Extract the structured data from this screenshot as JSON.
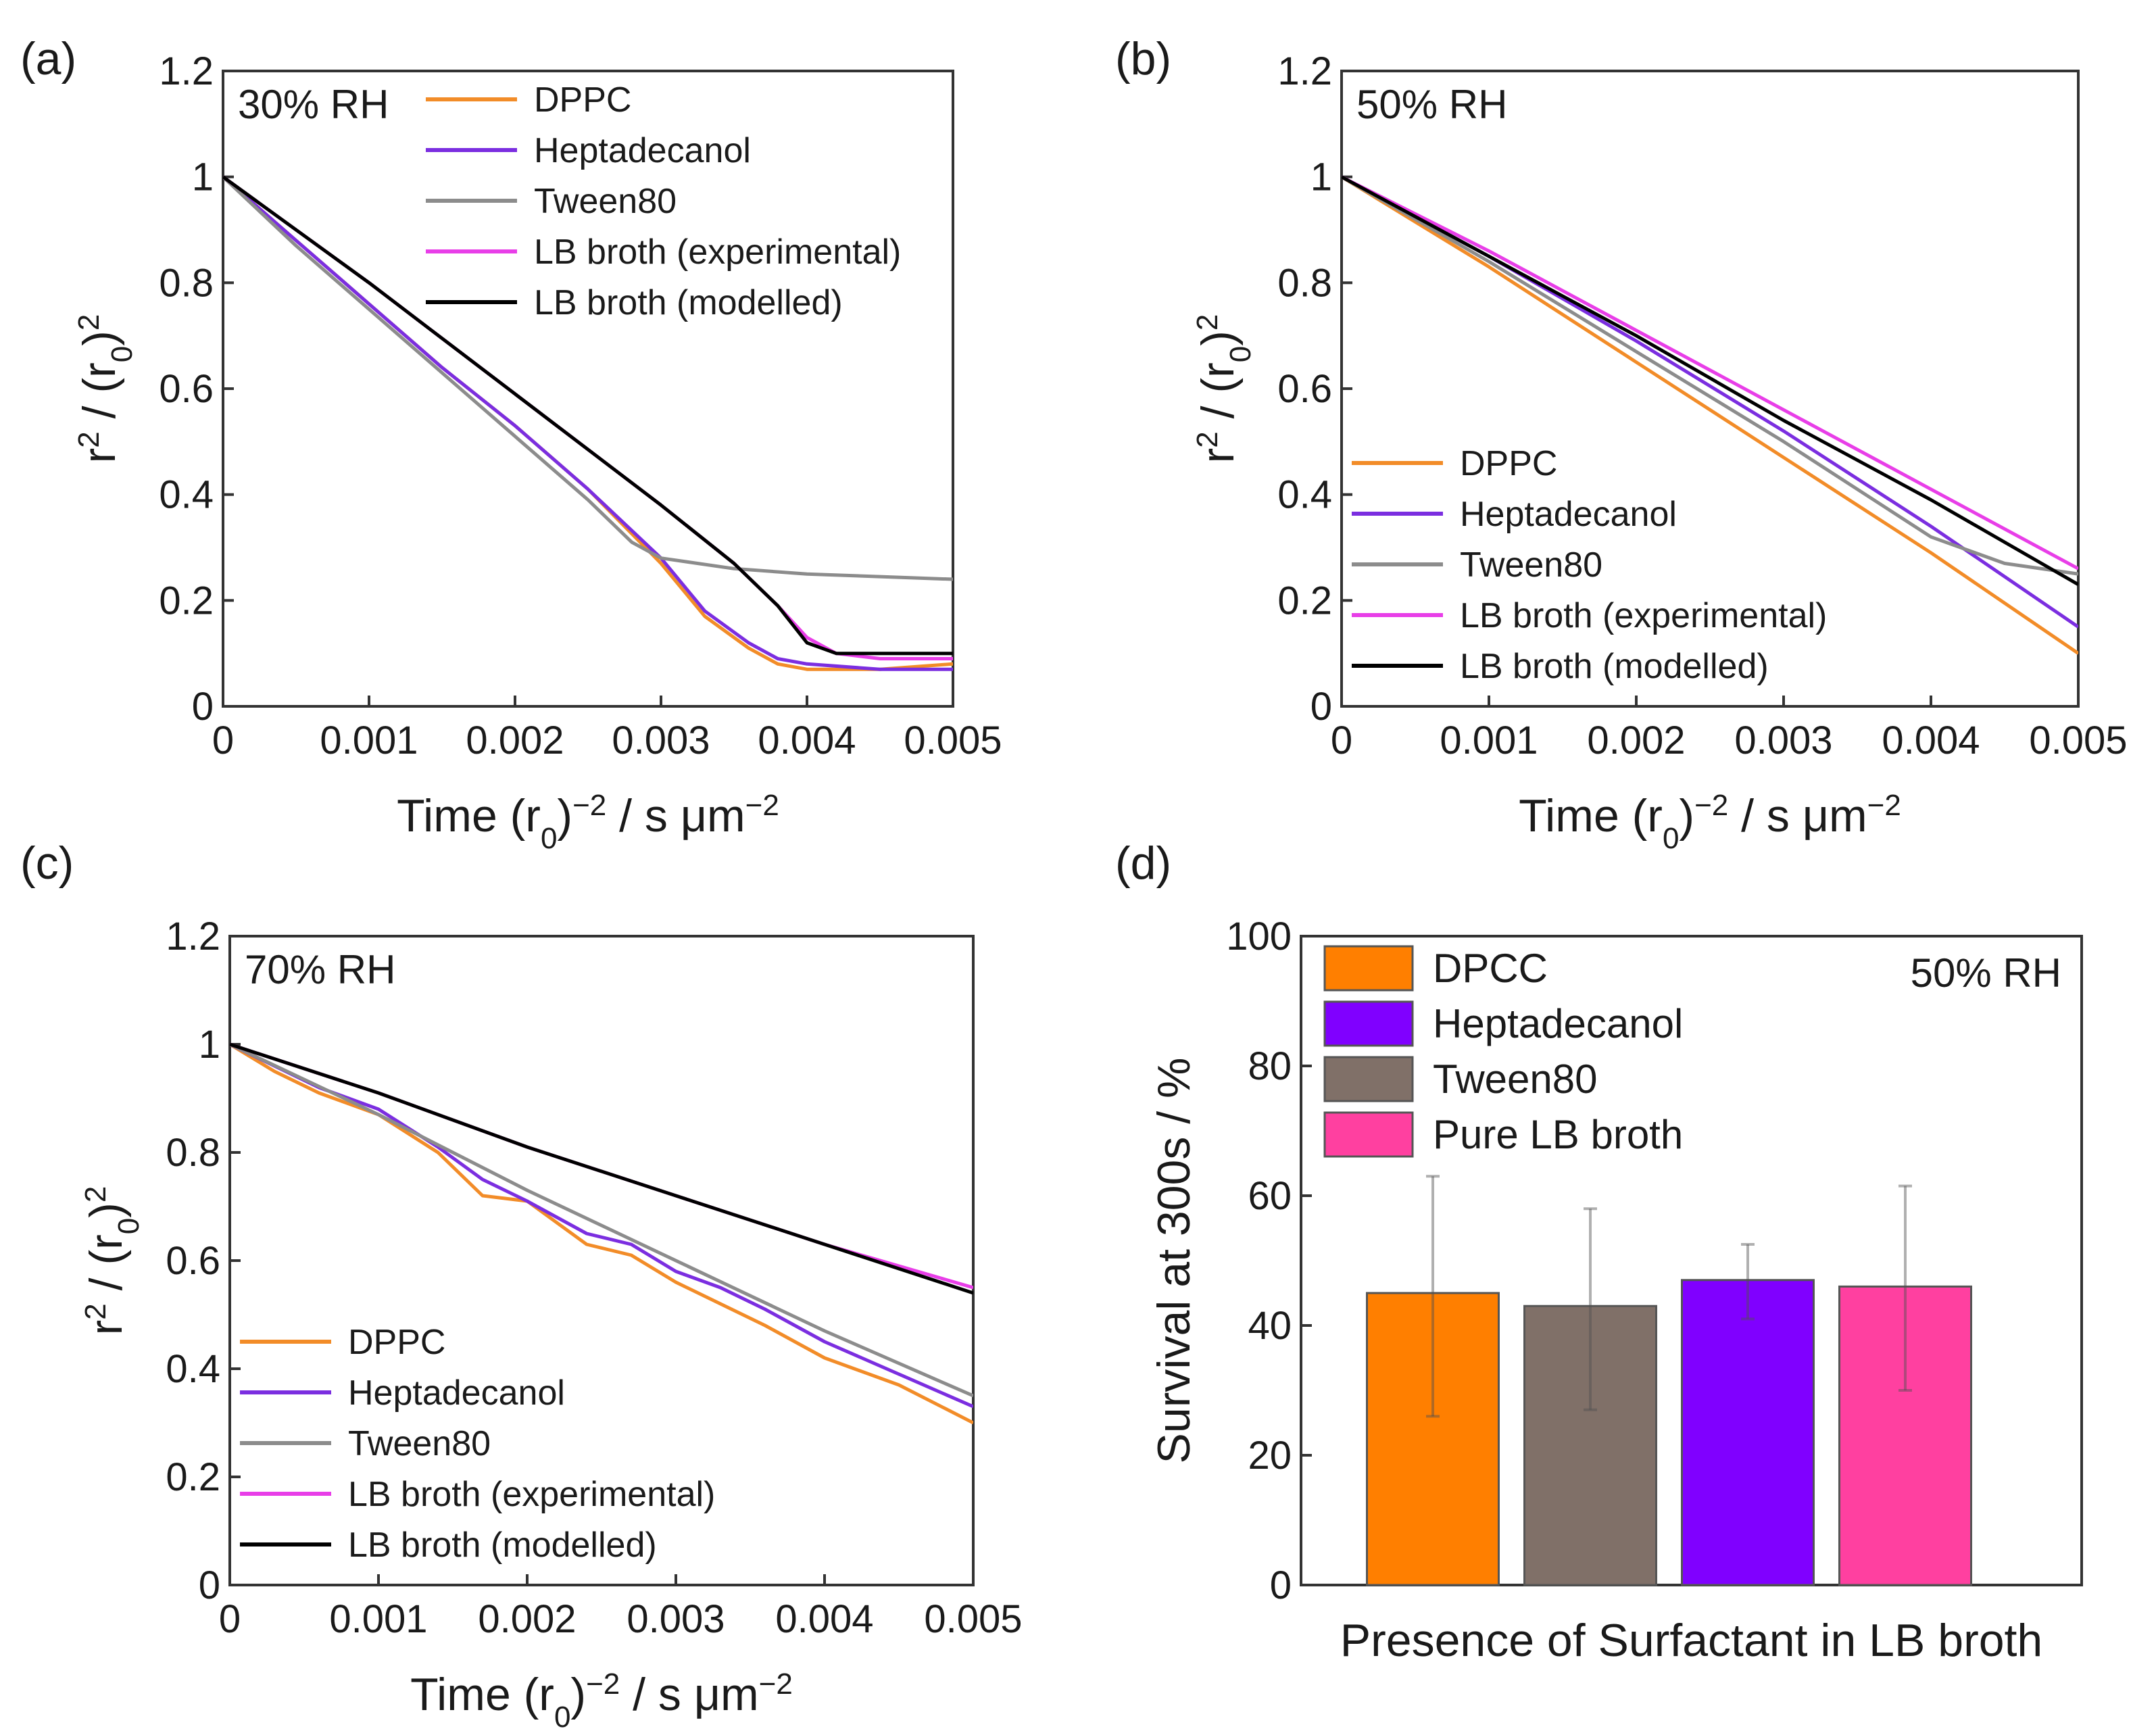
{
  "chart_data": [
    {
      "type": "line",
      "panel_label": "(a)",
      "annotation": "30% RH",
      "xlabel": "Time (r0)−2 / s μm−2",
      "ylabel": "r2 / (r0)2",
      "xlim": [
        0,
        0.005
      ],
      "ylim": [
        0,
        1.2
      ],
      "xticks": [
        "0",
        "0.001",
        "0.002",
        "0.003",
        "0.004",
        "0.005"
      ],
      "yticks": [
        "0",
        "0.2",
        "0.4",
        "0.6",
        "0.8",
        "1",
        "1.2"
      ],
      "legend_position": "top-right",
      "series": [
        {
          "name": "DPPC",
          "color": "#f28c28",
          "x": [
            0,
            0.0005,
            0.001,
            0.0015,
            0.002,
            0.0025,
            0.003,
            0.0033,
            0.0036,
            0.0038,
            0.004,
            0.0045,
            0.005
          ],
          "y": [
            1.0,
            0.88,
            0.76,
            0.64,
            0.53,
            0.41,
            0.27,
            0.17,
            0.11,
            0.08,
            0.07,
            0.07,
            0.08
          ]
        },
        {
          "name": "Heptadecanol",
          "color": "#7b2ee0",
          "x": [
            0,
            0.0005,
            0.001,
            0.0015,
            0.002,
            0.0025,
            0.003,
            0.0033,
            0.0036,
            0.0038,
            0.004,
            0.0045,
            0.005
          ],
          "y": [
            1.0,
            0.88,
            0.76,
            0.64,
            0.53,
            0.41,
            0.28,
            0.18,
            0.12,
            0.09,
            0.08,
            0.07,
            0.07
          ]
        },
        {
          "name": "Tween80",
          "color": "#8c8c8c",
          "x": [
            0,
            0.0005,
            0.001,
            0.0015,
            0.002,
            0.0025,
            0.0028,
            0.003,
            0.0035,
            0.004,
            0.0045,
            0.005
          ],
          "y": [
            1.0,
            0.87,
            0.75,
            0.63,
            0.51,
            0.39,
            0.31,
            0.28,
            0.26,
            0.25,
            0.245,
            0.24
          ]
        },
        {
          "name": "LB broth (experimental)",
          "color": "#e83ee8",
          "x": [
            0,
            0.001,
            0.002,
            0.003,
            0.0035,
            0.0038,
            0.004,
            0.0042,
            0.0045,
            0.005
          ],
          "y": [
            1.0,
            0.8,
            0.59,
            0.38,
            0.27,
            0.19,
            0.13,
            0.1,
            0.09,
            0.09
          ]
        },
        {
          "name": "LB broth (modelled)",
          "color": "#000000",
          "x": [
            0,
            0.001,
            0.002,
            0.003,
            0.0035,
            0.0038,
            0.004,
            0.0042,
            0.0045,
            0.005
          ],
          "y": [
            1.0,
            0.8,
            0.59,
            0.38,
            0.27,
            0.19,
            0.12,
            0.1,
            0.1,
            0.1
          ]
        }
      ]
    },
    {
      "type": "line",
      "panel_label": "(b)",
      "annotation": "50% RH",
      "xlabel": "Time (r0)−2 / s μm−2",
      "ylabel": "r2 / (r0)2",
      "xlim": [
        0,
        0.005
      ],
      "ylim": [
        0,
        1.2
      ],
      "xticks": [
        "0",
        "0.001",
        "0.002",
        "0.003",
        "0.004",
        "0.005"
      ],
      "yticks": [
        "0",
        "0.2",
        "0.4",
        "0.6",
        "0.8",
        "1",
        "1.2"
      ],
      "legend_position": "bottom-left",
      "series": [
        {
          "name": "DPPC",
          "color": "#f28c28",
          "x": [
            0,
            0.001,
            0.002,
            0.003,
            0.004,
            0.005
          ],
          "y": [
            1.0,
            0.83,
            0.65,
            0.47,
            0.29,
            0.1
          ]
        },
        {
          "name": "Heptadecanol",
          "color": "#7b2ee0",
          "x": [
            0,
            0.001,
            0.002,
            0.003,
            0.004,
            0.005
          ],
          "y": [
            1.0,
            0.85,
            0.69,
            0.52,
            0.34,
            0.15
          ]
        },
        {
          "name": "Tween80",
          "color": "#8c8c8c",
          "x": [
            0,
            0.001,
            0.002,
            0.003,
            0.004,
            0.0045,
            0.005
          ],
          "y": [
            1.0,
            0.84,
            0.67,
            0.5,
            0.32,
            0.27,
            0.25
          ]
        },
        {
          "name": "LB broth (experimental)",
          "color": "#e83ee8",
          "x": [
            0,
            0.001,
            0.002,
            0.003,
            0.004,
            0.005
          ],
          "y": [
            1.0,
            0.86,
            0.71,
            0.56,
            0.41,
            0.26
          ]
        },
        {
          "name": "LB broth (modelled)",
          "color": "#000000",
          "x": [
            0,
            0.001,
            0.002,
            0.003,
            0.004,
            0.005
          ],
          "y": [
            1.0,
            0.85,
            0.7,
            0.54,
            0.39,
            0.23
          ]
        }
      ]
    },
    {
      "type": "line",
      "panel_label": "(c)",
      "annotation": "70% RH",
      "xlabel": "Time (r0)−2 / s μm−2",
      "ylabel": "r2 / (r0)2",
      "xlim": [
        0,
        0.005
      ],
      "ylim": [
        0,
        1.2
      ],
      "xticks": [
        "0",
        "0.001",
        "0.002",
        "0.003",
        "0.004",
        "0.005"
      ],
      "yticks": [
        "0",
        "0.2",
        "0.4",
        "0.6",
        "0.8",
        "1",
        "1.2"
      ],
      "legend_position": "bottom-left",
      "series": [
        {
          "name": "DPPC",
          "color": "#f28c28",
          "x": [
            0,
            0.0003,
            0.0006,
            0.001,
            0.0014,
            0.0017,
            0.002,
            0.0024,
            0.0027,
            0.003,
            0.0033,
            0.0036,
            0.004,
            0.0045,
            0.005
          ],
          "y": [
            1.0,
            0.95,
            0.91,
            0.87,
            0.8,
            0.72,
            0.71,
            0.63,
            0.61,
            0.56,
            0.52,
            0.48,
            0.42,
            0.37,
            0.3
          ]
        },
        {
          "name": "Heptadecanol",
          "color": "#7b2ee0",
          "x": [
            0,
            0.0003,
            0.0006,
            0.001,
            0.0014,
            0.0017,
            0.002,
            0.0024,
            0.0027,
            0.003,
            0.0033,
            0.0036,
            0.004,
            0.0045,
            0.005
          ],
          "y": [
            1.0,
            0.96,
            0.92,
            0.88,
            0.81,
            0.75,
            0.71,
            0.65,
            0.63,
            0.58,
            0.55,
            0.51,
            0.45,
            0.39,
            0.33
          ]
        },
        {
          "name": "Tween80",
          "color": "#8c8c8c",
          "x": [
            0,
            0.001,
            0.002,
            0.003,
            0.004,
            0.005
          ],
          "y": [
            1.0,
            0.87,
            0.73,
            0.6,
            0.47,
            0.35
          ]
        },
        {
          "name": "LB broth (experimental)",
          "color": "#e83ee8",
          "x": [
            0,
            0.001,
            0.002,
            0.003,
            0.004,
            0.005
          ],
          "y": [
            1.0,
            0.91,
            0.81,
            0.72,
            0.63,
            0.55
          ]
        },
        {
          "name": "LB broth (modelled)",
          "color": "#000000",
          "x": [
            0,
            0.001,
            0.002,
            0.003,
            0.004,
            0.005
          ],
          "y": [
            1.0,
            0.91,
            0.81,
            0.72,
            0.63,
            0.54
          ]
        }
      ]
    },
    {
      "type": "bar",
      "panel_label": "(d)",
      "annotation": "50% RH",
      "xlabel": "Presence of Surfactant in LB broth",
      "ylabel": "Survival at 300s / %",
      "ylim": [
        0,
        100
      ],
      "yticks": [
        "0",
        "20",
        "40",
        "60",
        "80",
        "100"
      ],
      "legend_position": "top-left",
      "legend": [
        {
          "name": "DPCC",
          "color": "#ff7f00"
        },
        {
          "name": "Heptadecanol",
          "color": "#8000ff"
        },
        {
          "name": "Tween80",
          "color": "#807068"
        },
        {
          "name": "Pure LB broth",
          "color": "#ff40a0"
        }
      ],
      "bars": [
        {
          "value": 45,
          "error_low": 26,
          "error_high": 63,
          "color": "#ff7f00"
        },
        {
          "value": 43,
          "error_low": 27,
          "error_high": 58,
          "color": "#807068"
        },
        {
          "value": 47,
          "error_low": 41,
          "error_high": 52.5,
          "color": "#8000ff"
        },
        {
          "value": 46,
          "error_low": 30,
          "error_high": 61.5,
          "color": "#ff40a0"
        }
      ]
    }
  ]
}
